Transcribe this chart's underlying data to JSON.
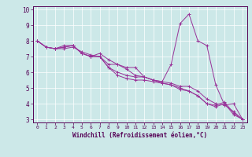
{
  "xlabel": "Windchill (Refroidissement éolien,°C)",
  "bg_color": "#cce8e8",
  "line_color": "#993399",
  "xlim": [
    -0.5,
    23.5
  ],
  "ylim": [
    2.8,
    10.2
  ],
  "xticks": [
    0,
    1,
    2,
    3,
    4,
    5,
    6,
    7,
    8,
    9,
    10,
    11,
    12,
    13,
    14,
    15,
    16,
    17,
    18,
    19,
    20,
    21,
    22,
    23
  ],
  "yticks": [
    3,
    4,
    5,
    6,
    7,
    8,
    9,
    10
  ],
  "series": [
    [
      0,
      8.0,
      1,
      7.6,
      2,
      7.5,
      3,
      7.5,
      4,
      7.6,
      5,
      7.3,
      6,
      7.1,
      7,
      7.0,
      8,
      6.3,
      9,
      6.0,
      10,
      5.8,
      11,
      5.7,
      12,
      5.7,
      13,
      5.5,
      14,
      5.3,
      15,
      5.2,
      16,
      5.0,
      17,
      4.8,
      18,
      4.5,
      19,
      4.0,
      20,
      3.8,
      21,
      4.0,
      22,
      3.3,
      23,
      3.0
    ],
    [
      0,
      8.0,
      1,
      7.6,
      2,
      7.5,
      3,
      7.7,
      4,
      7.7,
      5,
      7.2,
      6,
      7.0,
      7,
      7.2,
      8,
      6.8,
      9,
      6.5,
      10,
      6.2,
      11,
      5.8,
      12,
      5.7,
      13,
      5.5,
      14,
      5.4,
      15,
      6.5,
      16,
      9.1,
      17,
      9.7,
      18,
      8.0,
      19,
      7.7,
      20,
      5.2,
      21,
      3.9,
      22,
      4.0,
      23,
      3.0
    ],
    [
      0,
      8.0,
      1,
      7.6,
      2,
      7.5,
      3,
      7.6,
      4,
      7.7,
      5,
      7.2,
      6,
      7.0,
      7,
      7.0,
      8,
      6.3,
      9,
      5.8,
      10,
      5.6,
      11,
      5.5,
      12,
      5.5,
      13,
      5.4,
      14,
      5.3,
      15,
      5.2,
      16,
      4.9,
      17,
      4.8,
      18,
      4.5,
      19,
      4.0,
      20,
      3.9,
      21,
      4.1,
      22,
      3.4,
      23,
      3.0
    ],
    [
      0,
      8.0,
      1,
      7.6,
      2,
      7.5,
      3,
      7.6,
      4,
      7.7,
      5,
      7.2,
      6,
      7.0,
      7,
      7.0,
      8,
      6.5,
      9,
      6.5,
      10,
      6.3,
      11,
      6.3,
      12,
      5.7,
      13,
      5.5,
      14,
      5.4,
      15,
      5.3,
      16,
      5.1,
      17,
      5.1,
      18,
      4.8,
      19,
      4.3,
      20,
      4.0,
      21,
      3.9,
      22,
      3.5,
      23,
      3.0
    ]
  ]
}
